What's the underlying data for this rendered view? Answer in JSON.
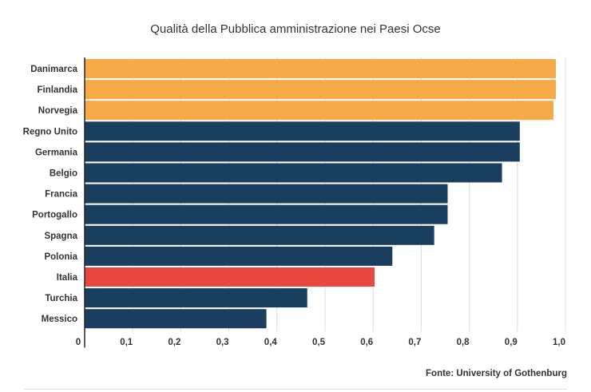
{
  "chart_data": {
    "type": "bar",
    "orientation": "horizontal",
    "title": "Qualità della Pubblica amministrazione nei Paesi Ocse",
    "categories": [
      "Danimarca",
      "Finlandia",
      "Norvegia",
      "Regno Unito",
      "Germania",
      "Belgio",
      "Francia",
      "Portogallo",
      "Spagna",
      "Polonia",
      "Italia",
      "Turchia",
      "Messico"
    ],
    "values": [
      0.98,
      0.98,
      0.975,
      0.905,
      0.905,
      0.868,
      0.755,
      0.755,
      0.727,
      0.64,
      0.603,
      0.463,
      0.378
    ],
    "colors": [
      "#f5a947",
      "#f5a947",
      "#f5a947",
      "#1a3e5e",
      "#1a3e5e",
      "#1a3e5e",
      "#1a3e5e",
      "#1a3e5e",
      "#1a3e5e",
      "#1a3e5e",
      "#e8473f",
      "#1a3e5e",
      "#1a3e5e"
    ],
    "xlim": [
      0,
      1.0
    ],
    "xticks": [
      "0",
      "0,1",
      "0,2",
      "0,3",
      "0,4",
      "0,5",
      "0,6",
      "0,7",
      "0,8",
      "0,9",
      "1,0"
    ],
    "grid": true
  },
  "source": "Fonte: University of Gothenburg"
}
